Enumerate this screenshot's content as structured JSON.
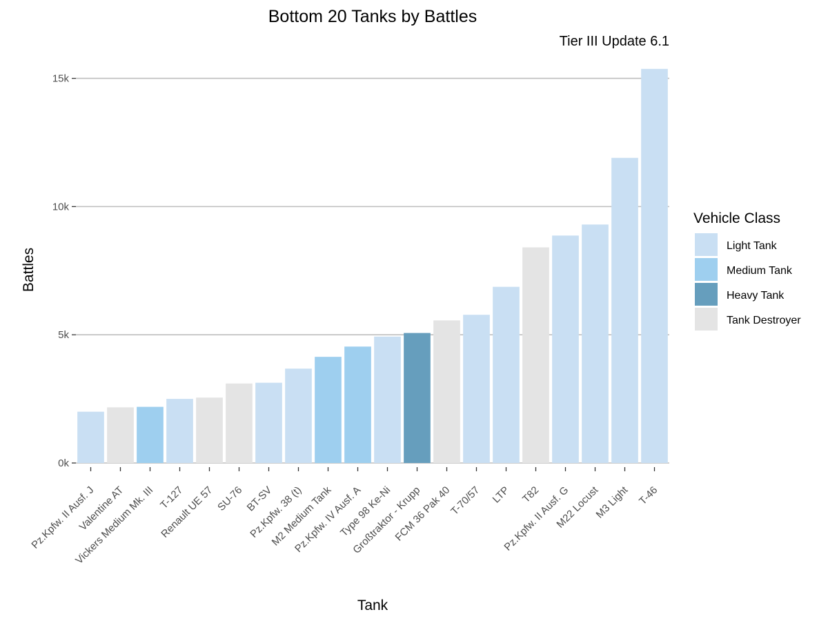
{
  "chart_data": {
    "type": "bar",
    "title": "Bottom 20 Tanks by Battles",
    "subtitle": "Tier III Update 6.1",
    "xlabel": "Tank",
    "ylabel": "Battles",
    "ylim": [
      0,
      15500
    ],
    "yticks": [
      0,
      5000,
      10000,
      15000
    ],
    "ytick_labels": [
      "0k",
      "5k",
      "10k",
      "15k"
    ],
    "grid": "horizontal",
    "legend": {
      "title": "Vehicle Class",
      "placement": "right",
      "entries": [
        {
          "name": "Light Tank",
          "color": "#c9dff3"
        },
        {
          "name": "Medium Tank",
          "color": "#9ecfef"
        },
        {
          "name": "Heavy Tank",
          "color": "#669ebd"
        },
        {
          "name": "Tank Destroyer",
          "color": "#e4e4e4"
        }
      ]
    },
    "categories": [
      "Pz.Kpfw. II Ausf. J",
      "Valentine AT",
      "Vickers Medium Mk. III",
      "T-127",
      "Renault UE 57",
      "SU-76",
      "BT-SV",
      "Pz.Kpfw. 38 (t)",
      "M2 Medium Tank",
      "Pz.Kpfw. IV Ausf. A",
      "Type 98 Ke-Ni",
      "Großtraktor - Krupp",
      "FCM 36 Pak 40",
      "T-70/57",
      "LTP",
      "T82",
      "Pz.Kpfw. II Ausf. G",
      "M22 Locust",
      "M3 Light",
      "T-46"
    ],
    "values": [
      2000,
      2170,
      2190,
      2500,
      2550,
      3100,
      3130,
      3680,
      4140,
      4540,
      4930,
      5070,
      5560,
      5780,
      6870,
      8410,
      8870,
      9300,
      11900,
      15370
    ],
    "classes": [
      "Light Tank",
      "Tank Destroyer",
      "Medium Tank",
      "Light Tank",
      "Tank Destroyer",
      "Tank Destroyer",
      "Light Tank",
      "Light Tank",
      "Medium Tank",
      "Medium Tank",
      "Light Tank",
      "Heavy Tank",
      "Tank Destroyer",
      "Light Tank",
      "Light Tank",
      "Tank Destroyer",
      "Light Tank",
      "Light Tank",
      "Light Tank",
      "Light Tank"
    ]
  }
}
